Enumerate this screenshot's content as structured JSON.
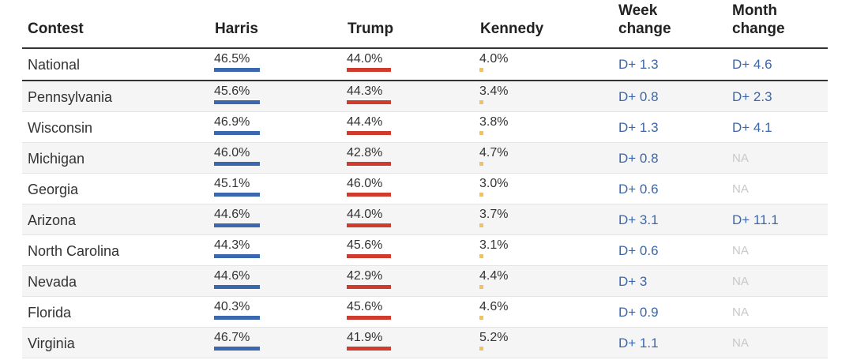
{
  "headers": {
    "contest": "Contest",
    "harris": "Harris",
    "trump": "Trump",
    "kennedy": "Kennedy",
    "week_line1": "Week",
    "week_line2": "change",
    "month_line1": "Month",
    "month_line2": "change"
  },
  "colors": {
    "harris": "#3a67ad",
    "trump": "#cf3c2e",
    "kennedy": "#f2c35c",
    "change_text": "#3a67ad",
    "na_text": "#c8c8c8"
  },
  "chart_data": {
    "type": "table",
    "columns": [
      "Contest",
      "Harris",
      "Trump",
      "Kennedy",
      "Week change",
      "Month change"
    ],
    "rows": [
      {
        "contest": "National",
        "harris": "46.5%",
        "trump": "44.0%",
        "kennedy": "4.0%",
        "week": "D+ 1.3",
        "month": "D+ 4.6"
      },
      {
        "contest": "Pennsylvania",
        "harris": "45.6%",
        "trump": "44.3%",
        "kennedy": "3.4%",
        "week": "D+ 0.8",
        "month": "D+ 2.3"
      },
      {
        "contest": "Wisconsin",
        "harris": "46.9%",
        "trump": "44.4%",
        "kennedy": "3.8%",
        "week": "D+ 1.3",
        "month": "D+ 4.1"
      },
      {
        "contest": "Michigan",
        "harris": "46.0%",
        "trump": "42.8%",
        "kennedy": "4.7%",
        "week": "D+ 0.8",
        "month": "NA"
      },
      {
        "contest": "Georgia",
        "harris": "45.1%",
        "trump": "46.0%",
        "kennedy": "3.0%",
        "week": "D+ 0.6",
        "month": "NA"
      },
      {
        "contest": "Arizona",
        "harris": "44.6%",
        "trump": "44.0%",
        "kennedy": "3.7%",
        "week": "D+ 3.1",
        "month": "D+ 11.1"
      },
      {
        "contest": "North Carolina",
        "harris": "44.3%",
        "trump": "45.6%",
        "kennedy": "3.1%",
        "week": "D+ 0.6",
        "month": "NA"
      },
      {
        "contest": "Nevada",
        "harris": "44.6%",
        "trump": "42.9%",
        "kennedy": "4.4%",
        "week": "D+ 3",
        "month": "NA"
      },
      {
        "contest": "Florida",
        "harris": "40.3%",
        "trump": "45.6%",
        "kennedy": "4.6%",
        "week": "D+ 0.9",
        "month": "NA"
      },
      {
        "contest": "Virginia",
        "harris": "46.7%",
        "trump": "41.9%",
        "kennedy": "5.2%",
        "week": "D+ 1.1",
        "month": "NA"
      }
    ]
  }
}
